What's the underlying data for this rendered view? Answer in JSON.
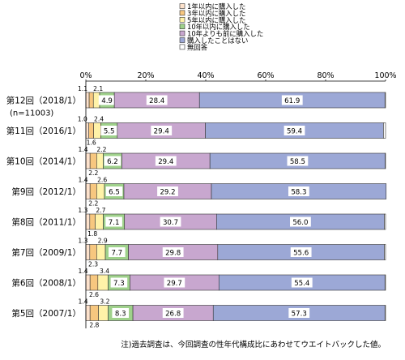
{
  "chart_data": {
    "type": "bar",
    "stacked": true,
    "orientation": "horizontal",
    "legend_position": "top",
    "xlim": [
      0,
      100
    ],
    "x_ticks": [
      "0%",
      "20%",
      "40%",
      "60%",
      "80%",
      "100%"
    ],
    "categories": [
      "第12回（2018/1）",
      "第11回（2016/1）",
      "第10回（2014/1）",
      "第9回（2012/1）",
      "第8回（2011/1）",
      "第7回（2009/1）",
      "第6回（2008/1）",
      "第5回（2007/1）"
    ],
    "category_note": "(n=11003)",
    "series": [
      {
        "name": "1年以内に購入した",
        "color": "#fde2cc",
        "values": [
          1.1,
          1.0,
          1.4,
          1.4,
          1.3,
          1.3,
          1.4,
          1.4
        ]
      },
      {
        "name": "3年以内に購入した",
        "color": "#f7c77f",
        "values": [
          1.4,
          1.6,
          2.2,
          2.2,
          1.8,
          2.3,
          2.6,
          2.8
        ]
      },
      {
        "name": "5年以内に購入した",
        "color": "#fff2a8",
        "values": [
          2.1,
          2.4,
          2.2,
          2.6,
          2.7,
          2.9,
          3.4,
          3.2
        ]
      },
      {
        "name": "10年以内に購入した",
        "color": "#9fd18b",
        "values": [
          4.9,
          5.5,
          6.2,
          6.5,
          7.1,
          7.7,
          7.3,
          8.3
        ]
      },
      {
        "name": "10年よりも前に購入した",
        "color": "#c8a7cf",
        "values": [
          28.4,
          29.4,
          29.4,
          29.2,
          30.7,
          29.8,
          29.7,
          26.8
        ]
      },
      {
        "name": "購入したことはない",
        "color": "#9ca8d6",
        "values": [
          61.9,
          59.4,
          58.5,
          58.3,
          56.0,
          55.6,
          55.4,
          57.3
        ]
      },
      {
        "name": "無回答",
        "color": "#ffffff",
        "values": [
          0.2,
          0.7,
          0.1,
          0,
          0.4,
          0.4,
          0.2,
          0.2
        ]
      }
    ],
    "data_labels": [
      [
        "1.1",
        "",
        "2.1",
        "4.9",
        "28.4",
        "61.9"
      ],
      [
        "1.0",
        "1.6",
        "2.4",
        "5.5",
        "29.4",
        "59.4"
      ],
      [
        "1.4",
        "2.2",
        "2.2",
        "6.2",
        "29.4",
        "58.5"
      ],
      [
        "1.4",
        "2.2",
        "2.6",
        "6.5",
        "29.2",
        "58.3"
      ],
      [
        "1.3",
        "1.8",
        "2.7",
        "7.1",
        "30.7",
        "56.0"
      ],
      [
        "1.3",
        "2.3",
        "2.9",
        "7.7",
        "29.8",
        "55.6"
      ],
      [
        "1.4",
        "2.6",
        "3.4",
        "7.3",
        "29.7",
        "55.4"
      ],
      [
        "1.4",
        "2.8",
        "3.2",
        "8.3",
        "26.8",
        "57.3"
      ]
    ],
    "footnote": "注)過去調査は、今回調査の性年代構成比にあわせてウエイトバックした値。"
  }
}
